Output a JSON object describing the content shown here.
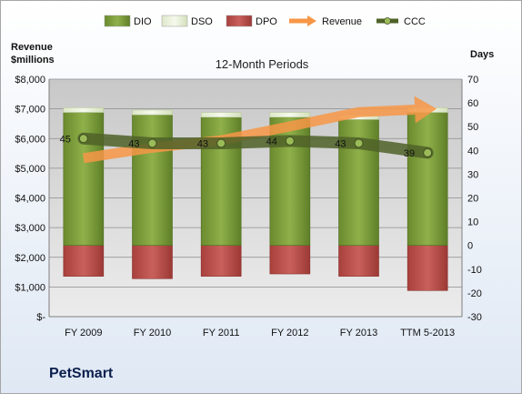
{
  "chart_data": {
    "type": "bar",
    "title": "12-Month Periods",
    "y_left_label_line1": "Revenue",
    "y_left_label_line2": "$millions",
    "y_right_label": "Days",
    "categories": [
      "FY 2009",
      "FY 2010",
      "FY 2011",
      "FY 2012",
      "FY 2013",
      "TTM 5-2013"
    ],
    "y_left_ticks": [
      "$-",
      "$1,000",
      "$2,000",
      "$3,000",
      "$4,000",
      "$5,000",
      "$6,000",
      "$7,000",
      "$8,000"
    ],
    "y_left_range": [
      0,
      8000
    ],
    "y_right_range": [
      -30,
      70
    ],
    "y_right_ticks": [
      "-30",
      "-20",
      "-10",
      "0",
      "10",
      "20",
      "30",
      "40",
      "50",
      "60",
      "70"
    ],
    "grid": true,
    "legend_position": "top",
    "legend": [
      {
        "name": "DIO",
        "color": "#77933c"
      },
      {
        "name": "DSO",
        "color": "#eaf1dd"
      },
      {
        "name": "DPO",
        "color": "#c0504d"
      },
      {
        "name": "Revenue",
        "color": "#f79646"
      },
      {
        "name": "CCC",
        "color": "#4f6228"
      }
    ],
    "series": [
      {
        "name": "DIO",
        "axis": "right",
        "values": [
          56,
          55,
          54,
          54,
          53,
          56
        ]
      },
      {
        "name": "DSO",
        "axis": "right",
        "values": [
          2,
          2,
          2,
          2,
          2,
          2
        ]
      },
      {
        "name": "DPO",
        "axis": "right",
        "values": [
          -13,
          -14,
          -13,
          -12,
          -13,
          -19
        ]
      },
      {
        "name": "Revenue",
        "axis": "left",
        "values": [
          5340,
          5690,
          5940,
          6410,
          6890,
          6990
        ]
      },
      {
        "name": "CCC",
        "axis": "right",
        "values": [
          45,
          43,
          43,
          44,
          43,
          39
        ]
      }
    ],
    "ccc_labels": [
      "45",
      "43",
      "43",
      "44",
      "43",
      "39"
    ]
  },
  "company": "PetSmart"
}
